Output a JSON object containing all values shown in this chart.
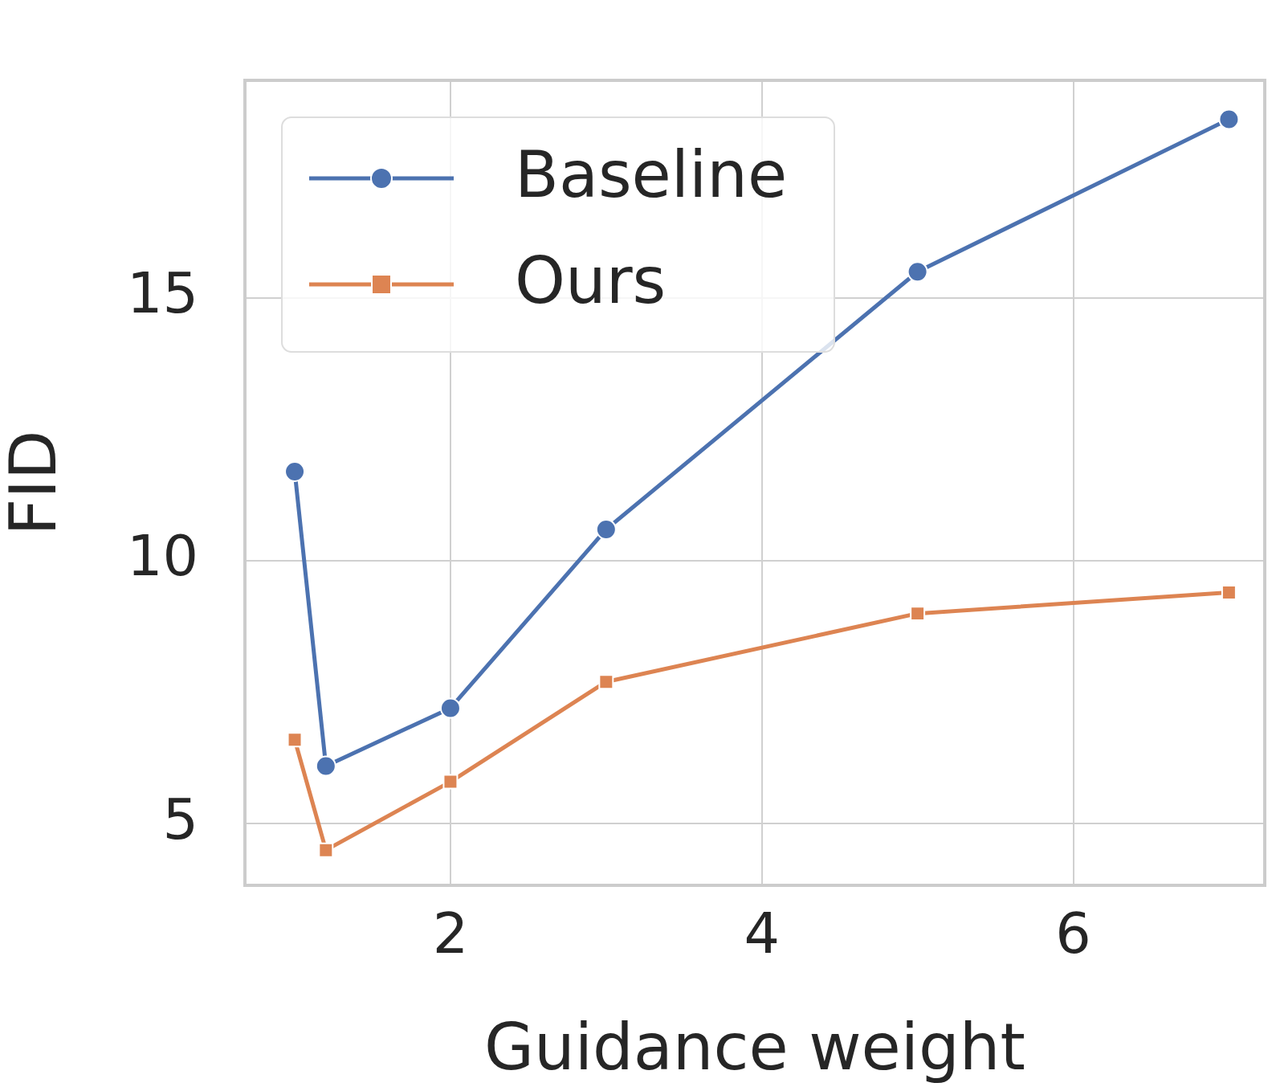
{
  "chart_data": {
    "type": "line",
    "xlabel": "Guidance weight",
    "ylabel": "FID",
    "xlim": [
      0.68,
      7.23
    ],
    "xticks": [
      2,
      4,
      6
    ],
    "ylim": [
      3.83,
      19.14
    ],
    "yticks": [
      5,
      10,
      15
    ],
    "grid": true,
    "legend": "top left",
    "series": [
      {
        "name": "Baseline",
        "color": "#4c72b0",
        "marker": "circle",
        "x": [
          1.0,
          1.2,
          2,
          3,
          5,
          7
        ],
        "values": [
          11.7,
          6.1,
          7.2,
          10.6,
          15.5,
          18.4
        ]
      },
      {
        "name": "Ours",
        "color": "#dd8452",
        "marker": "square",
        "x": [
          1.0,
          1.2,
          2,
          3,
          5,
          7
        ],
        "values": [
          6.6,
          4.5,
          5.8,
          7.7,
          9.0,
          9.4
        ]
      }
    ]
  }
}
